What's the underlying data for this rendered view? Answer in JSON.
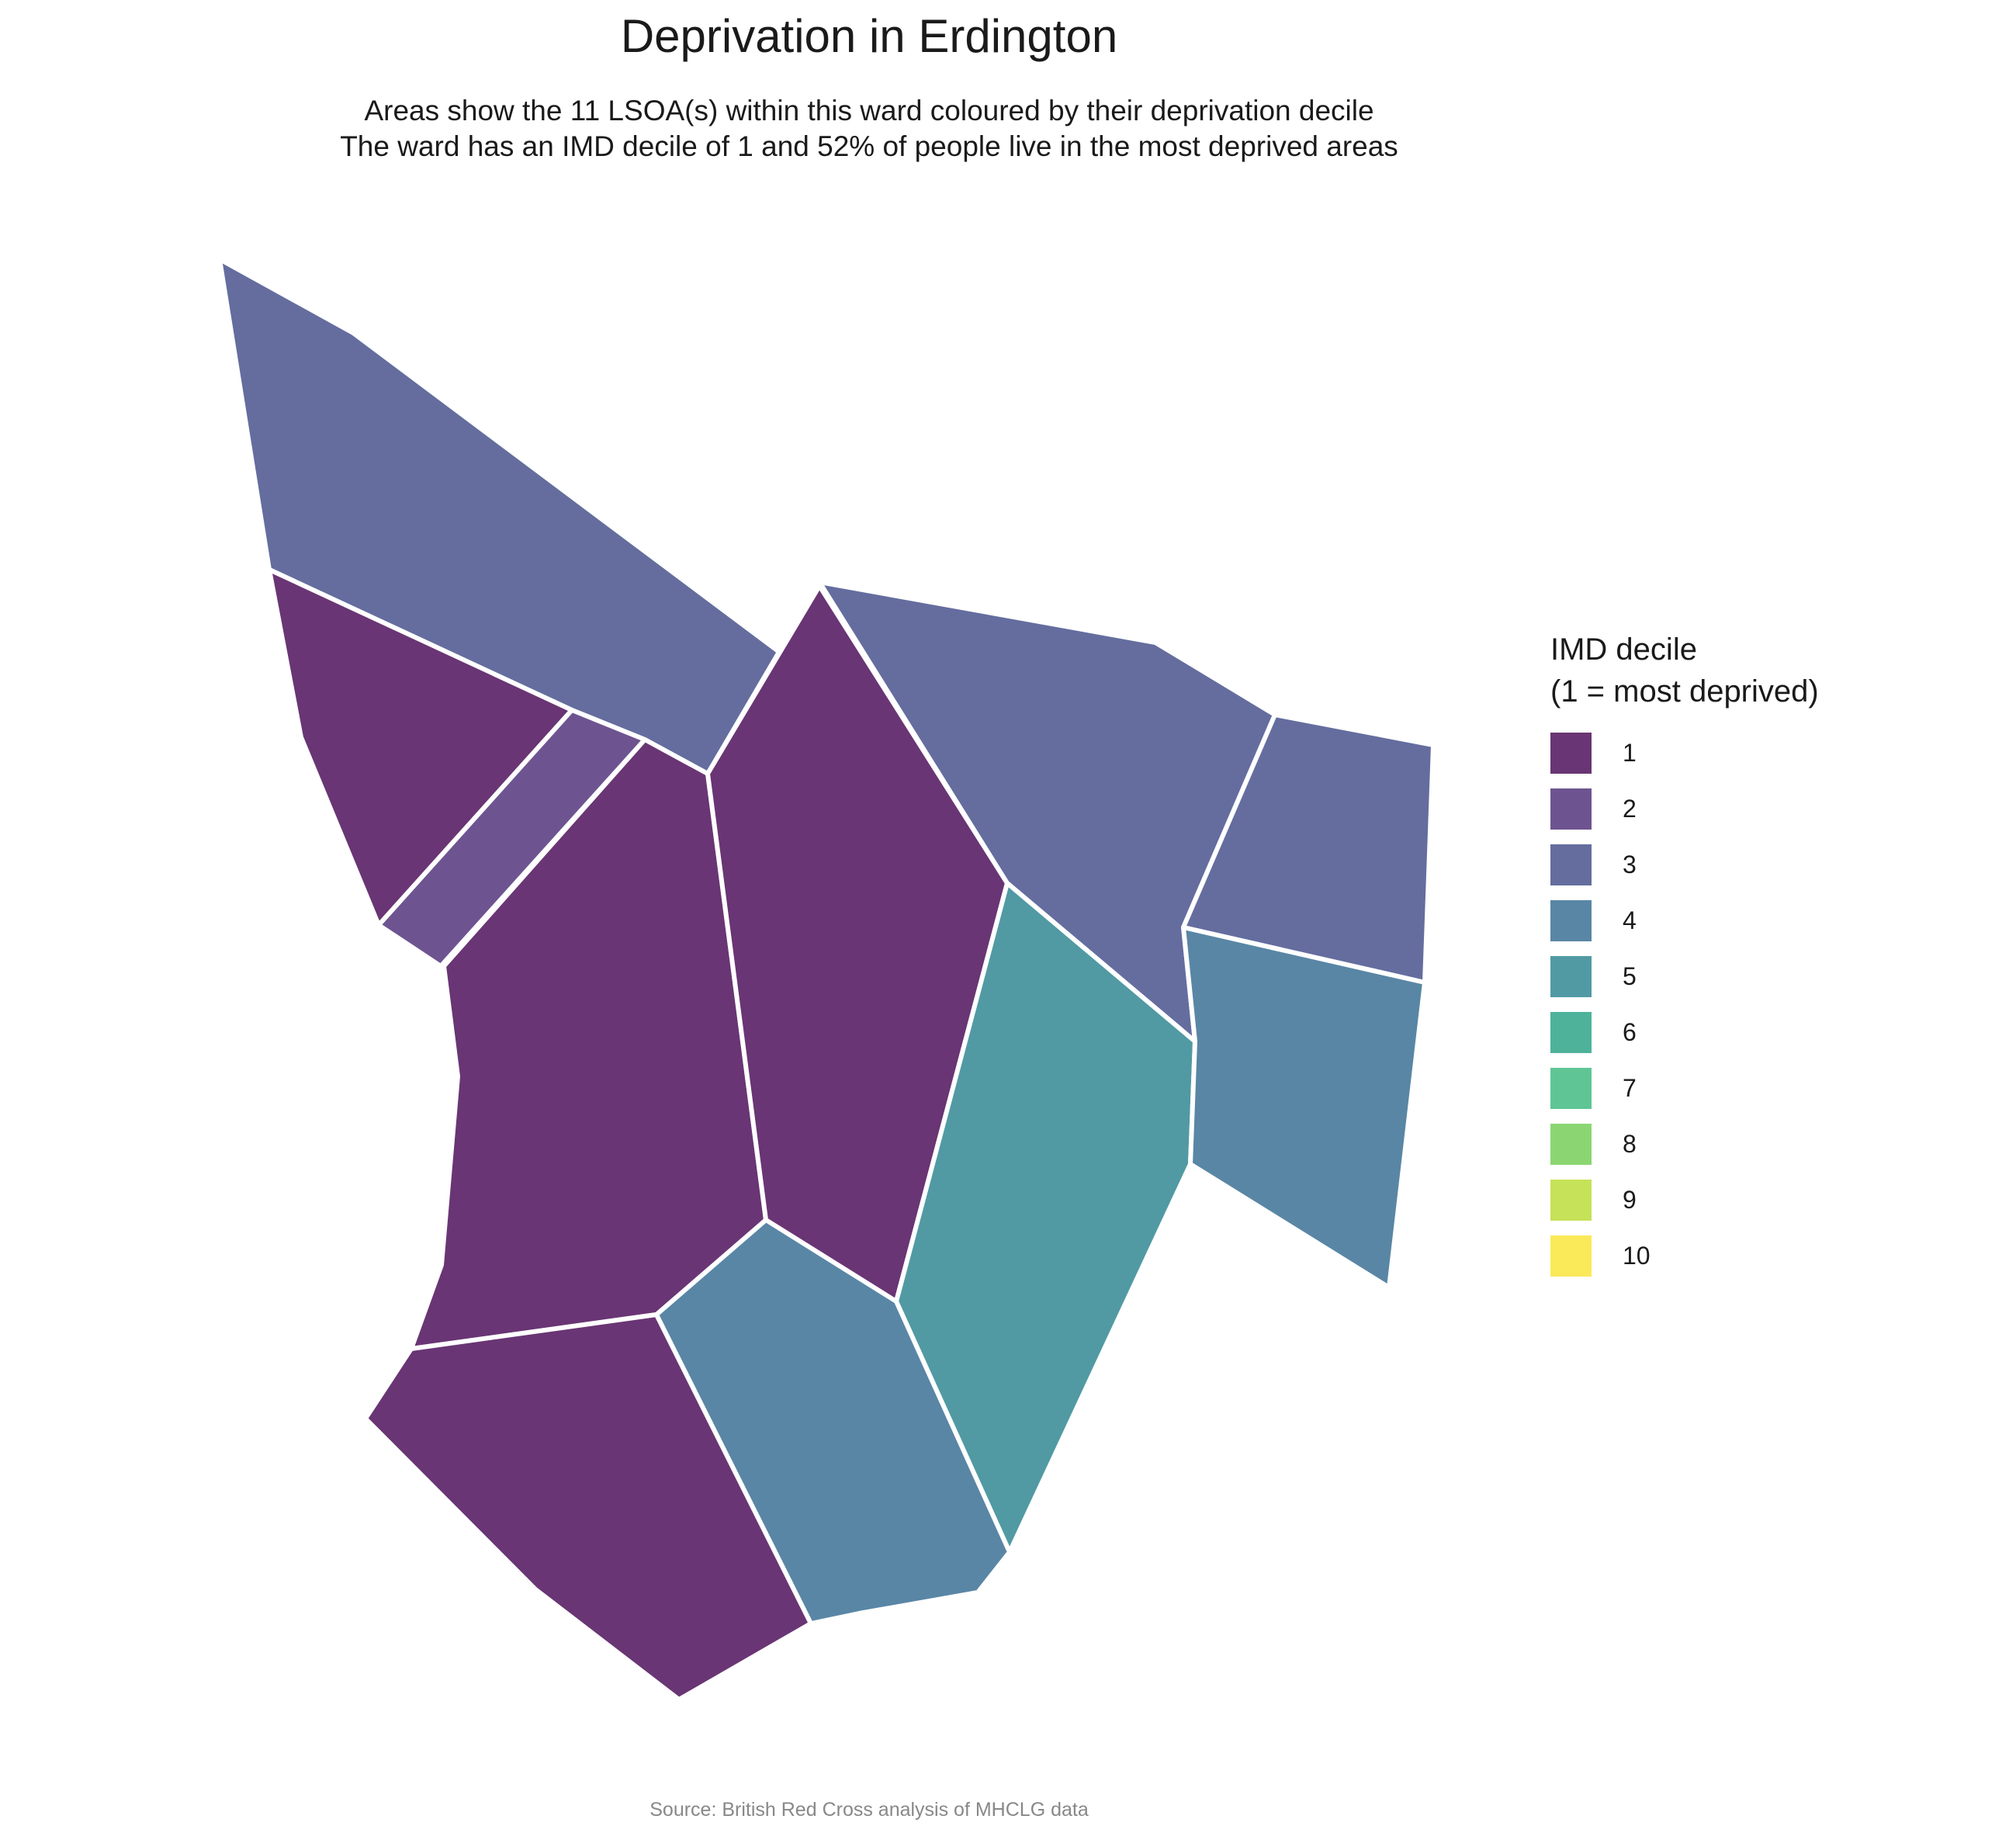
{
  "title": "Deprivation in Erdington",
  "subtitle_line1": "Areas show the 11 LSOA(s) within this ward coloured by their deprivation decile",
  "subtitle_line2": "The ward has an IMD decile of 1 and 52% of people live in the most deprived areas",
  "legend": {
    "title_line1": "IMD decile",
    "title_line2": "(1 = most deprived)",
    "items": [
      {
        "label": "1",
        "color": "#693574"
      },
      {
        "label": "2",
        "color": "#6d5491"
      },
      {
        "label": "3",
        "color": "#646d9e"
      },
      {
        "label": "4",
        "color": "#5986a5"
      },
      {
        "label": "5",
        "color": "#519aa3"
      },
      {
        "label": "6",
        "color": "#4eb29b"
      },
      {
        "label": "7",
        "color": "#5fc594"
      },
      {
        "label": "8",
        "color": "#8bd672"
      },
      {
        "label": "9",
        "color": "#c6e258"
      },
      {
        "label": "10",
        "color": "#fae959"
      }
    ]
  },
  "areas": [
    {
      "name": "lsoa-north-west",
      "decile": 3
    },
    {
      "name": "lsoa-west-upper",
      "decile": 1
    },
    {
      "name": "lsoa-west-strip",
      "decile": 2
    },
    {
      "name": "lsoa-central-west",
      "decile": 1
    },
    {
      "name": "lsoa-central",
      "decile": 1
    },
    {
      "name": "lsoa-north-east",
      "decile": 3
    },
    {
      "name": "lsoa-far-east-upper",
      "decile": 3
    },
    {
      "name": "lsoa-east-middle",
      "decile": 5
    },
    {
      "name": "lsoa-far-east-lower",
      "decile": 4
    },
    {
      "name": "lsoa-south-west",
      "decile": 1
    },
    {
      "name": "lsoa-south-central",
      "decile": 4
    }
  ],
  "source": "Source: British Red Cross analysis of MHCLG data"
}
